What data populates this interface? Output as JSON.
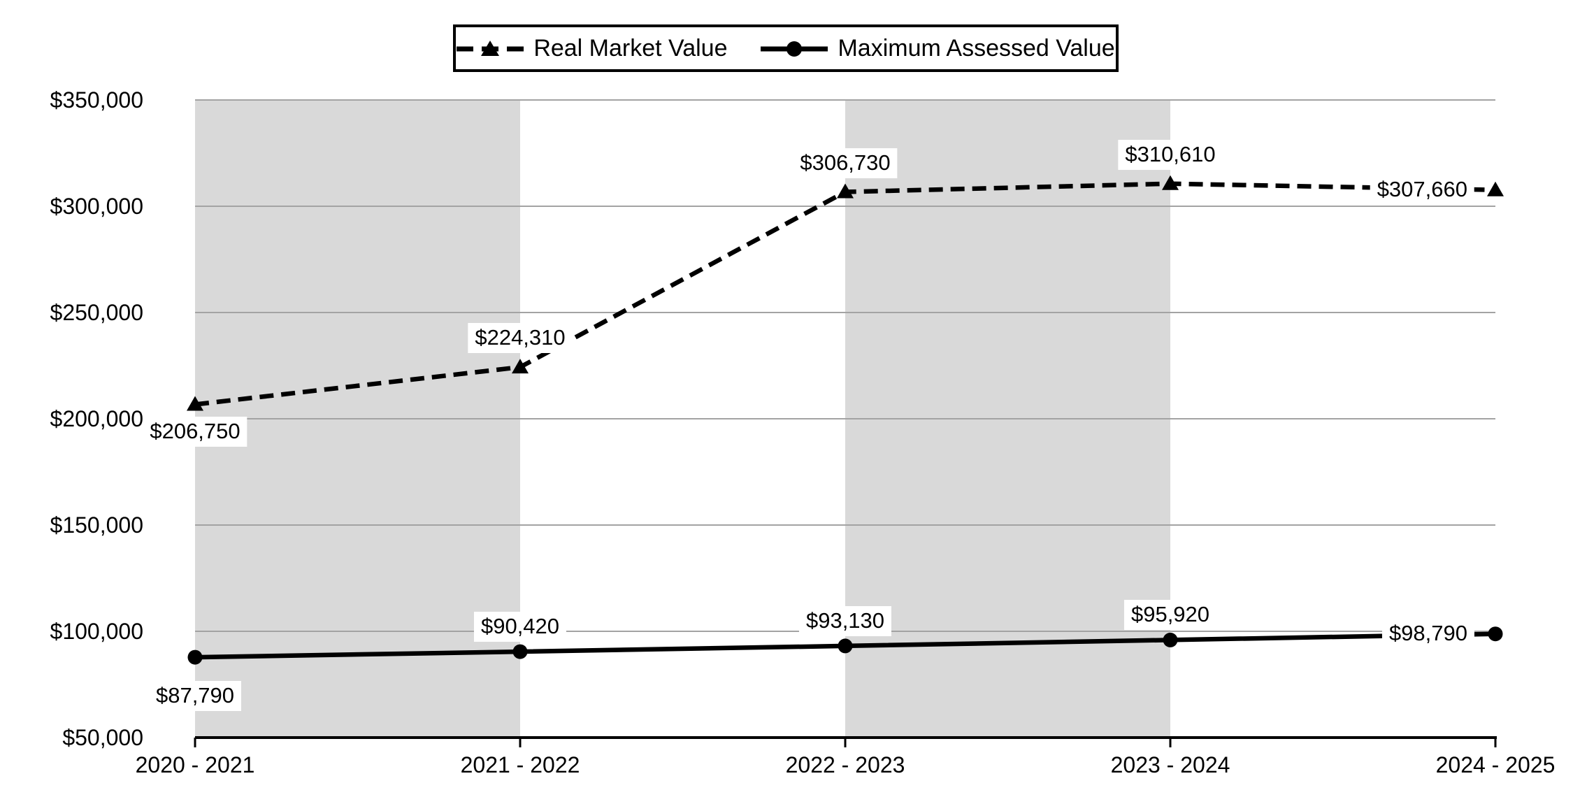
{
  "chart_data": {
    "type": "line",
    "title": "",
    "xlabel": "",
    "ylabel": "",
    "categories": [
      "2020 - 2021",
      "2021 - 2022",
      "2022 - 2023",
      "2023 - 2024",
      "2024 - 2025"
    ],
    "series": [
      {
        "name": "Real Market Value",
        "line": "dashed",
        "marker": "triangle",
        "values": [
          206750,
          224310,
          306730,
          310610,
          307660
        ],
        "data_labels": [
          "$206,750",
          "$224,310",
          "$306,730",
          "$310,610",
          "$307,660"
        ],
        "label_placements": [
          "below",
          "above",
          "above",
          "above",
          "left"
        ]
      },
      {
        "name": "Maximum Assessed Value",
        "line": "solid",
        "marker": "circle",
        "values": [
          87790,
          90420,
          93130,
          95920,
          98790
        ],
        "data_labels": [
          "$87,790",
          "$90,420",
          "$93,130",
          "$95,920",
          "$98,790"
        ],
        "label_placements": [
          "below",
          "above",
          "above",
          "above",
          "left"
        ]
      }
    ],
    "ylim": [
      50000,
      350000
    ],
    "ytick_step": 50000,
    "ytick_labels": [
      "$50,000",
      "$100,000",
      "$150,000",
      "$200,000",
      "$250,000",
      "$300,000",
      "$350,000"
    ],
    "grid": true,
    "legend_position": "top-center",
    "shaded_bands": [
      [
        0,
        1
      ],
      [
        2,
        3
      ]
    ],
    "colors": {
      "line": "#000000",
      "band": "#d9d9d9",
      "gridline": "#a3a3a3",
      "axis": "#000000",
      "label_bg": "#ffffff",
      "text": "#000000"
    }
  }
}
